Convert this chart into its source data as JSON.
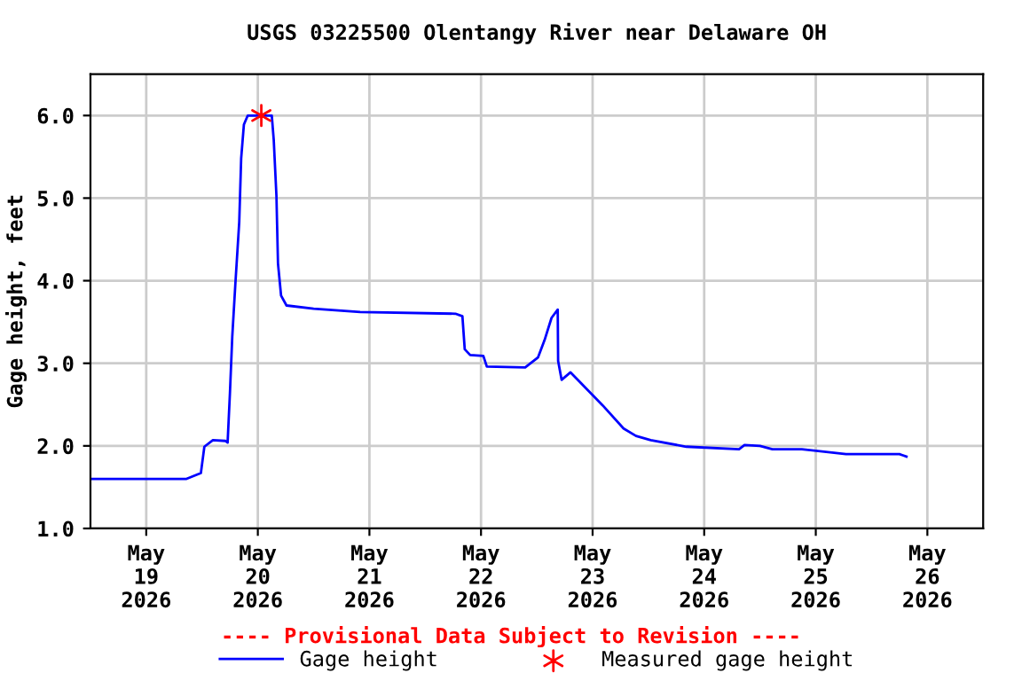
{
  "chart_data": {
    "type": "line",
    "title": "USGS 03225500 Olentangy River near Delaware OH",
    "ylabel": "Gage height, feet",
    "annotations": [
      "---- Provisional Data Subject to Revision ----"
    ],
    "series": [
      {
        "name": "Gage height",
        "color": "#0000ff",
        "marker": "none",
        "x": [
          "2026-05-18T12:00",
          "2026-05-19T08:40",
          "2026-05-19T11:45",
          "2026-05-19T12:30",
          "2026-05-19T14:20",
          "2026-05-19T17:00",
          "2026-05-19T17:30",
          "2026-05-19T18:00",
          "2026-05-19T18:30",
          "2026-05-19T19:10",
          "2026-05-19T20:00",
          "2026-05-19T20:25",
          "2026-05-19T21:00",
          "2026-05-19T21:50",
          "2026-05-20T03:00",
          "2026-05-20T03:25",
          "2026-05-20T04:00",
          "2026-05-20T04:20",
          "2026-05-20T05:00",
          "2026-05-20T06:10",
          "2026-05-20T12:00",
          "2026-05-20T22:00",
          "2026-05-21T18:30",
          "2026-05-21T20:00",
          "2026-05-21T20:30",
          "2026-05-21T21:40",
          "2026-05-22T00:30",
          "2026-05-22T01:15",
          "2026-05-22T09:30",
          "2026-05-22T12:15",
          "2026-05-22T13:40",
          "2026-05-22T15:10",
          "2026-05-22T16:30",
          "2026-05-22T16:35",
          "2026-05-22T17:20",
          "2026-05-22T19:15",
          "2026-05-22T21:10",
          "2026-05-23T02:10",
          "2026-05-23T06:40",
          "2026-05-23T09:20",
          "2026-05-23T12:30",
          "2026-05-23T20:10",
          "2026-05-24T07:30",
          "2026-05-24T08:40",
          "2026-05-24T12:00",
          "2026-05-24T14:40",
          "2026-05-24T21:00",
          "2026-05-25T06:30",
          "2026-05-25T18:00",
          "2026-05-25T19:30"
        ],
        "values": [
          1.6,
          1.6,
          1.67,
          1.99,
          2.07,
          2.06,
          2.04,
          2.64,
          3.32,
          3.96,
          4.71,
          5.48,
          5.89,
          6.0,
          6.0,
          5.71,
          5.03,
          4.21,
          3.82,
          3.7,
          3.66,
          3.62,
          3.6,
          3.57,
          3.17,
          3.1,
          3.09,
          2.96,
          2.95,
          3.07,
          3.28,
          3.55,
          3.65,
          3.03,
          2.8,
          2.89,
          2.78,
          2.49,
          2.21,
          2.12,
          2.07,
          1.99,
          1.96,
          2.01,
          2.0,
          1.96,
          1.96,
          1.9,
          1.9,
          1.87
        ]
      },
      {
        "name": "Measured gage height",
        "type": "scatter",
        "color": "#ff0000",
        "marker": "cross",
        "x": [
          "2026-05-20T00:45"
        ],
        "values": [
          6.0
        ]
      }
    ],
    "xlim": [
      "2026-05-18T12:00",
      "2026-05-26T12:00"
    ],
    "xticks": [
      {
        "value": "2026-05-19",
        "label": "May\n19\n2026"
      },
      {
        "value": "2026-05-20",
        "label": "May\n20\n2026"
      },
      {
        "value": "2026-05-21",
        "label": "May\n21\n2026"
      },
      {
        "value": "2026-05-22",
        "label": "May\n22\n2026"
      },
      {
        "value": "2026-05-23",
        "label": "May\n23\n2026"
      },
      {
        "value": "2026-05-24",
        "label": "May\n24\n2026"
      },
      {
        "value": "2026-05-25",
        "label": "May\n25\n2026"
      },
      {
        "value": "2026-05-26",
        "label": "May\n26\n2026"
      }
    ],
    "ylim": [
      1.0,
      6.5
    ],
    "yticks": [
      {
        "value": 1,
        "label": "1.0"
      },
      {
        "value": 2,
        "label": "2.0"
      },
      {
        "value": 3,
        "label": "3.0"
      },
      {
        "value": 4,
        "label": "4.0"
      },
      {
        "value": 5,
        "label": "5.0"
      },
      {
        "value": 6,
        "label": "6.0"
      }
    ],
    "grid": true,
    "legend": "bottom"
  }
}
